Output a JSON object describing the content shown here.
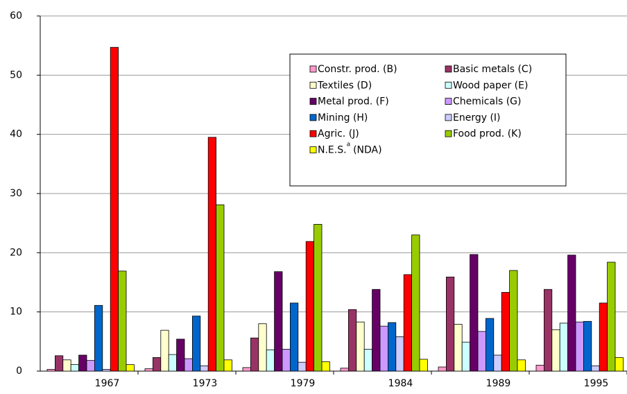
{
  "chart_data": {
    "type": "bar",
    "categories": [
      "1967",
      "1973",
      "1979",
      "1984",
      "1989",
      "1995"
    ],
    "ylim": [
      0,
      60
    ],
    "yticks": [
      0,
      10,
      20,
      30,
      40,
      50,
      60
    ],
    "grid": true,
    "series": [
      {
        "name": "Constr. prod. (B)",
        "color": "#ff99cc",
        "values": [
          0.3,
          0.4,
          0.6,
          0.5,
          0.7,
          1.0
        ]
      },
      {
        "name": "Basic metals (C)",
        "color": "#993366",
        "values": [
          2.6,
          2.3,
          5.6,
          10.4,
          15.9,
          13.8
        ]
      },
      {
        "name": "Textiles (D)",
        "color": "#ffffcc",
        "values": [
          1.9,
          6.9,
          8.0,
          8.3,
          7.9,
          7.0
        ]
      },
      {
        "name": "Wood paper (E)",
        "color": "#ccffff",
        "values": [
          1.1,
          2.8,
          3.6,
          3.7,
          4.9,
          8.1
        ]
      },
      {
        "name": "Metal prod. (F)",
        "color": "#660066",
        "values": [
          2.7,
          5.4,
          16.8,
          13.8,
          19.7,
          19.6
        ]
      },
      {
        "name": "Chemicals (G)",
        "color": "#cc99ff",
        "values": [
          1.8,
          2.1,
          3.7,
          7.6,
          6.7,
          8.3
        ]
      },
      {
        "name": "Mining (H)",
        "color": "#0066cc",
        "values": [
          11.1,
          9.3,
          11.5,
          8.2,
          8.9,
          8.4
        ]
      },
      {
        "name": "Energy  (I)",
        "color": "#ccccff",
        "values": [
          0.3,
          0.9,
          1.5,
          5.8,
          2.7,
          0.9
        ]
      },
      {
        "name": "Agric. (J)",
        "color": "#ff0000",
        "values": [
          54.7,
          39.5,
          21.9,
          16.3,
          13.3,
          11.5
        ]
      },
      {
        "name": "Food prod. (K)",
        "color": "#99cc00",
        "values": [
          16.9,
          28.1,
          24.8,
          23.0,
          17.0,
          18.4
        ]
      },
      {
        "name": "N.E.S.",
        "superscript": "a",
        "suffix": "(NDA)",
        "color": "#ffff00",
        "values": [
          1.1,
          1.9,
          1.6,
          2.0,
          1.9,
          2.3
        ]
      }
    ]
  }
}
